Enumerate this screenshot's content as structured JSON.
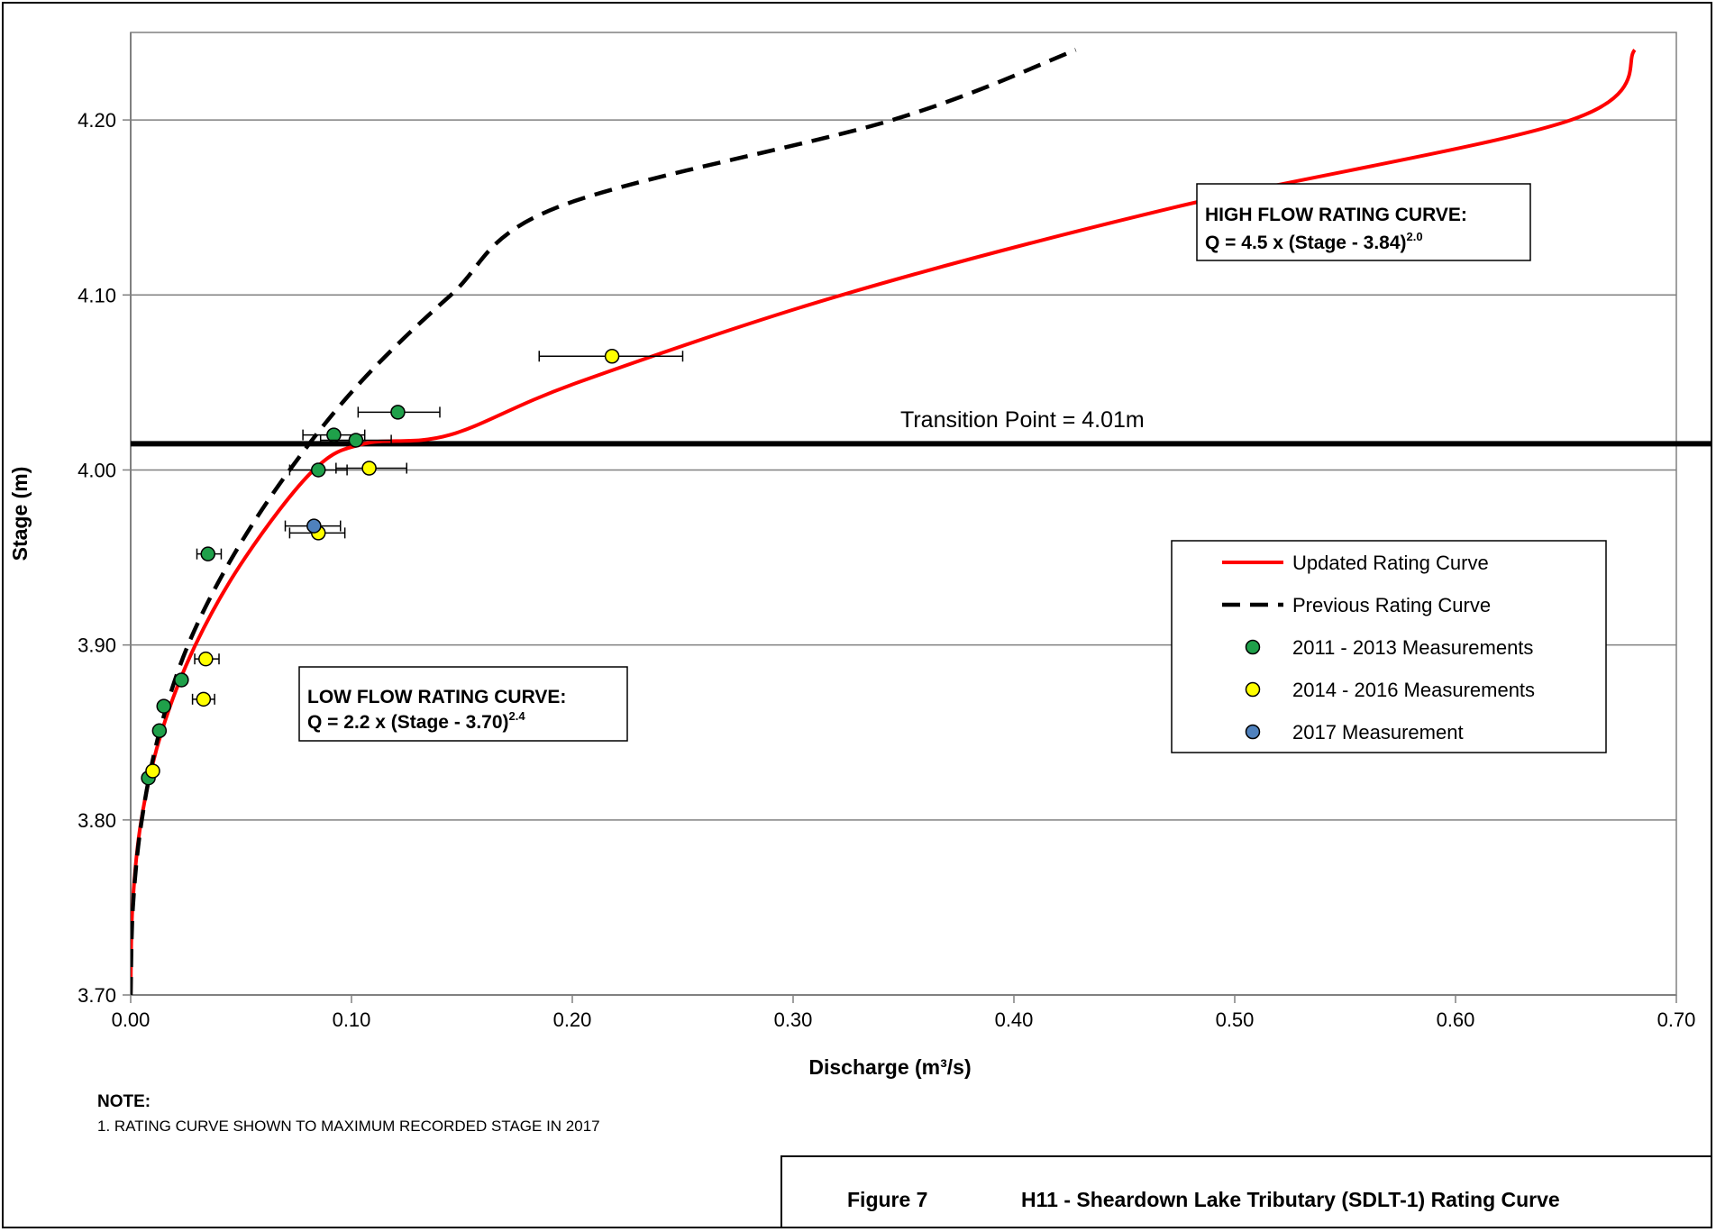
{
  "chart_data": {
    "type": "scatter",
    "xlabel": "Discharge (m³/s)",
    "ylabel": "Stage (m)",
    "xlim": [
      0.0,
      0.7
    ],
    "ylim": [
      3.7,
      4.25
    ],
    "x_ticks": [
      "0.00",
      "0.10",
      "0.20",
      "0.30",
      "0.40",
      "0.50",
      "0.60",
      "0.70"
    ],
    "y_ticks": [
      "3.70",
      "3.80",
      "3.90",
      "4.00",
      "4.10",
      "4.20"
    ],
    "grid": "horizontal",
    "legend_placement": "right",
    "transition_point": {
      "stage": 4.015,
      "label": "Transition Point = 4.01m"
    },
    "annotations": {
      "high_flow": {
        "title": "HIGH FLOW RATING CURVE:",
        "eq_main": "Q = 4.5 x (Stage - 3.84)",
        "eq_exp": "2.0"
      },
      "low_flow": {
        "title": "LOW FLOW RATING CURVE:",
        "eq_main": "Q = 2.2 x (Stage - 3.70)",
        "eq_exp": "2.4"
      }
    },
    "series": [
      {
        "name": "Updated Rating Curve",
        "kind": "line",
        "color": "#ff0000",
        "points": [
          [
            0.0,
            3.7
          ],
          [
            0.0008,
            3.75
          ],
          [
            0.0048,
            3.8
          ],
          [
            0.0139,
            3.85
          ],
          [
            0.0293,
            3.9
          ],
          [
            0.0519,
            3.95
          ],
          [
            0.0829,
            4.0
          ],
          [
            0.1058,
            4.015
          ],
          [
            0.1445,
            4.02
          ],
          [
            0.2025,
            4.05
          ],
          [
            0.3221,
            4.1
          ],
          [
            0.4725,
            4.15
          ],
          [
            0.6523,
            4.2
          ],
          [
            0.6812,
            4.24
          ]
        ]
      },
      {
        "name": "Previous Rating Curve",
        "kind": "dashed",
        "color": "#000000",
        "points": [
          [
            0.0,
            3.7
          ],
          [
            0.001,
            3.75
          ],
          [
            0.005,
            3.8
          ],
          [
            0.013,
            3.85
          ],
          [
            0.026,
            3.9
          ],
          [
            0.046,
            3.95
          ],
          [
            0.072,
            4.0
          ],
          [
            0.104,
            4.05
          ],
          [
            0.145,
            4.1
          ],
          [
            0.193,
            4.15
          ],
          [
            0.345,
            4.2
          ],
          [
            0.428,
            4.24
          ]
        ]
      },
      {
        "name": "2011 - 2013 Measurements",
        "kind": "points",
        "color": "#1fa04a",
        "points": [
          {
            "x": 0.092,
            "y": 4.02,
            "err": [
              0.078,
              0.106
            ]
          },
          {
            "x": 0.102,
            "y": 4.017,
            "err": [
              0.086,
              0.118
            ]
          },
          {
            "x": 0.121,
            "y": 4.033,
            "err": [
              0.103,
              0.14
            ]
          },
          {
            "x": 0.085,
            "y": 4.0,
            "err": [
              0.072,
              0.098
            ]
          },
          {
            "x": 0.035,
            "y": 3.952,
            "err": [
              0.03,
              0.041
            ]
          },
          {
            "x": 0.023,
            "y": 3.88
          },
          {
            "x": 0.015,
            "y": 3.865
          },
          {
            "x": 0.013,
            "y": 3.851
          },
          {
            "x": 0.008,
            "y": 3.824
          }
        ]
      },
      {
        "name": "2014 - 2016 Measurements",
        "kind": "points",
        "color": "#ffff00",
        "points": [
          {
            "x": 0.218,
            "y": 4.065,
            "err": [
              0.185,
              0.25
            ]
          },
          {
            "x": 0.108,
            "y": 4.001,
            "err": [
              0.093,
              0.125
            ]
          },
          {
            "x": 0.085,
            "y": 3.964,
            "err": [
              0.072,
              0.097
            ]
          },
          {
            "x": 0.034,
            "y": 3.892,
            "err": [
              0.029,
              0.04
            ]
          },
          {
            "x": 0.033,
            "y": 3.869,
            "err": [
              0.028,
              0.038
            ]
          },
          {
            "x": 0.01,
            "y": 3.828
          }
        ]
      },
      {
        "name": "2017 Measurement",
        "kind": "points",
        "color": "#4f81bd",
        "points": [
          {
            "x": 0.083,
            "y": 3.968,
            "err": [
              0.07,
              0.095
            ]
          }
        ]
      }
    ]
  },
  "note": {
    "title": "NOTE:",
    "line1": "1. RATING CURVE SHOWN TO MAXIMUM RECORDED STAGE IN 2017"
  },
  "figure": {
    "label": "Figure 7",
    "title": "H11 - Sheardown Lake Tributary (SDLT-1) Rating Curve"
  }
}
